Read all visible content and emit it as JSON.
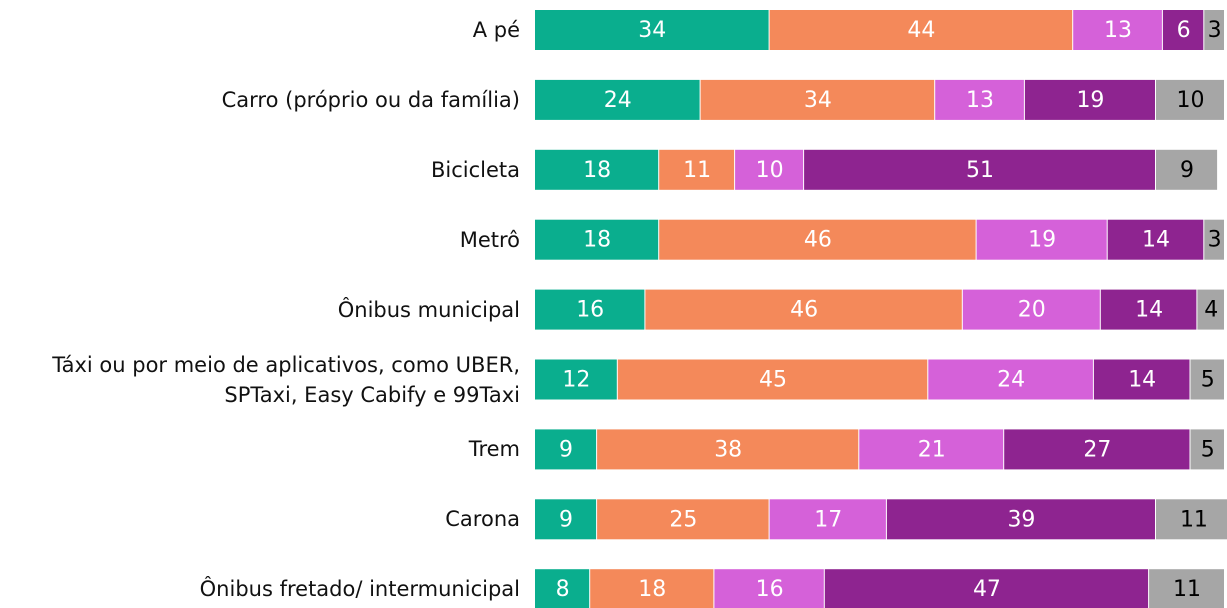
{
  "chart_data": {
    "type": "stacked-bar",
    "categories": [
      "A pé",
      "Carro (próprio ou da família)",
      "Bicicleta",
      "Metrô",
      "Ônibus municipal",
      "Táxi ou por meio de aplicativos, como UBER,\nSPTaxi, Easy Cabify e 99Taxi",
      "Trem",
      "Carona",
      "Ônibus fretado/ intermunicipal"
    ],
    "series": [
      {
        "color": "#0aae8e",
        "label_color": "#ffffff",
        "values": [
          34,
          24,
          18,
          18,
          16,
          12,
          9,
          9,
          8
        ]
      },
      {
        "color": "#f4895a",
        "label_color": "#ffffff",
        "values": [
          44,
          34,
          11,
          46,
          46,
          45,
          38,
          25,
          18
        ]
      },
      {
        "color": "#d561d9",
        "label_color": "#ffffff",
        "values": [
          13,
          13,
          10,
          19,
          20,
          24,
          21,
          17,
          16
        ]
      },
      {
        "color": "#8e2490",
        "label_color": "#ffffff",
        "values": [
          6,
          19,
          51,
          14,
          14,
          14,
          27,
          39,
          47
        ]
      },
      {
        "color": "#a6a6a6",
        "label_color": "#000000",
        "values": [
          3,
          10,
          9,
          3,
          4,
          5,
          5,
          11,
          11
        ]
      }
    ],
    "xlim": [
      0,
      100
    ]
  }
}
